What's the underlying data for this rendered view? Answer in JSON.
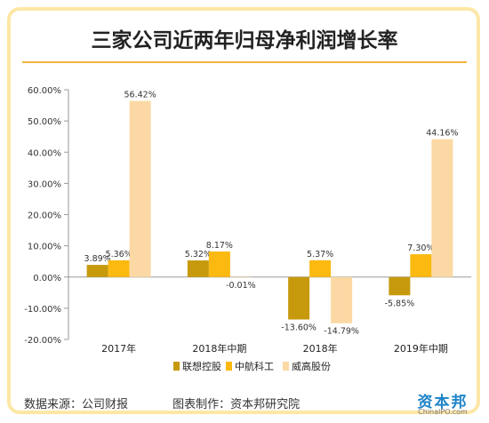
{
  "title": "三家公司近两年归母净利润增长率",
  "footer": {
    "source": "数据来源：公司财报",
    "maker": "图表制作：资本邦研究院"
  },
  "logo": {
    "name": "资本邦",
    "sub": "ChinaIPO.com"
  },
  "colors": {
    "series": [
      "#c79a0e",
      "#fcb90f",
      "#fcd9a4"
    ],
    "axis": "#9a9a9a",
    "title_rule": "#f3b33e",
    "frame": "#fde7a6"
  },
  "chart_data": {
    "type": "bar",
    "title": "三家公司近两年归母净利润增长率",
    "categories": [
      "2017年",
      "2018年中期",
      "2018年",
      "2019年中期"
    ],
    "series": [
      {
        "name": "联想控股",
        "values": [
          3.89,
          5.32,
          -13.6,
          -5.85
        ],
        "labels": [
          "3.89%",
          "5.32%",
          "-13.60%",
          "-5.85%"
        ]
      },
      {
        "name": "中航科工",
        "values": [
          5.36,
          8.17,
          5.37,
          7.3
        ],
        "labels": [
          "5.36%",
          "8.17%",
          "5.37%",
          "7.30%"
        ]
      },
      {
        "name": "威高股份",
        "values": [
          56.42,
          -0.01,
          -14.79,
          44.16
        ],
        "labels": [
          "56.42%",
          "-0.01%",
          "-14.79%",
          "44.16%"
        ]
      }
    ],
    "ylim": [
      -20,
      60
    ],
    "yticks": [
      60,
      50,
      40,
      30,
      20,
      10,
      0,
      -10,
      -20
    ],
    "ytick_labels": [
      "60.00%",
      "50.00%",
      "40.00%",
      "30.00%",
      "20.00%",
      "10.00%",
      "0.00%",
      "-10.00%",
      "-20.00%"
    ],
    "grid": false,
    "legend": "bottom"
  }
}
